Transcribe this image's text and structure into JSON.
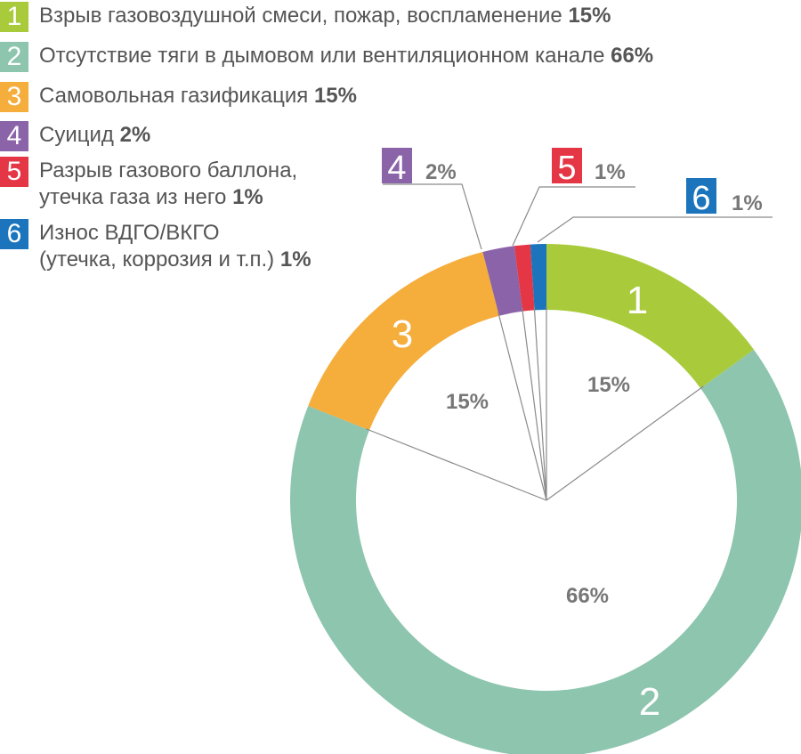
{
  "chart_data": {
    "type": "pie",
    "style": "donut",
    "categories": [
      "1",
      "2",
      "3",
      "4",
      "5",
      "6"
    ],
    "values": [
      15,
      66,
      15,
      2,
      1,
      1
    ],
    "value_labels": [
      "15%",
      "66%",
      "15%",
      "2%",
      "1%",
      "1%"
    ],
    "colors": [
      "#A9CB3B",
      "#8DC5AE",
      "#F5AD3B",
      "#8B63A8",
      "#E43645",
      "#1C75BC"
    ],
    "legend": [
      {
        "num": "1",
        "lines": [
          "Взрыв газовоздушной смеси, пожар, воспламенение"
        ],
        "pct": "15%"
      },
      {
        "num": "2",
        "lines": [
          "Отсутствие тяги в дымовом или вентиляционном канале"
        ],
        "pct": "66%"
      },
      {
        "num": "3",
        "lines": [
          "Самовольная газификация"
        ],
        "pct": "15%"
      },
      {
        "num": "4",
        "lines": [
          "Суицид"
        ],
        "pct": "2%"
      },
      {
        "num": "5",
        "lines": [
          "Разрыв газового баллона,",
          "утечка газа из него"
        ],
        "pct": "1%"
      },
      {
        "num": "6",
        "lines": [
          "Износ ВДГО/ВКГО",
          "(утечка, коррозия и т.п.)"
        ],
        "pct": "1%"
      }
    ],
    "legend_position": "top-left",
    "text_color": "#555555"
  }
}
